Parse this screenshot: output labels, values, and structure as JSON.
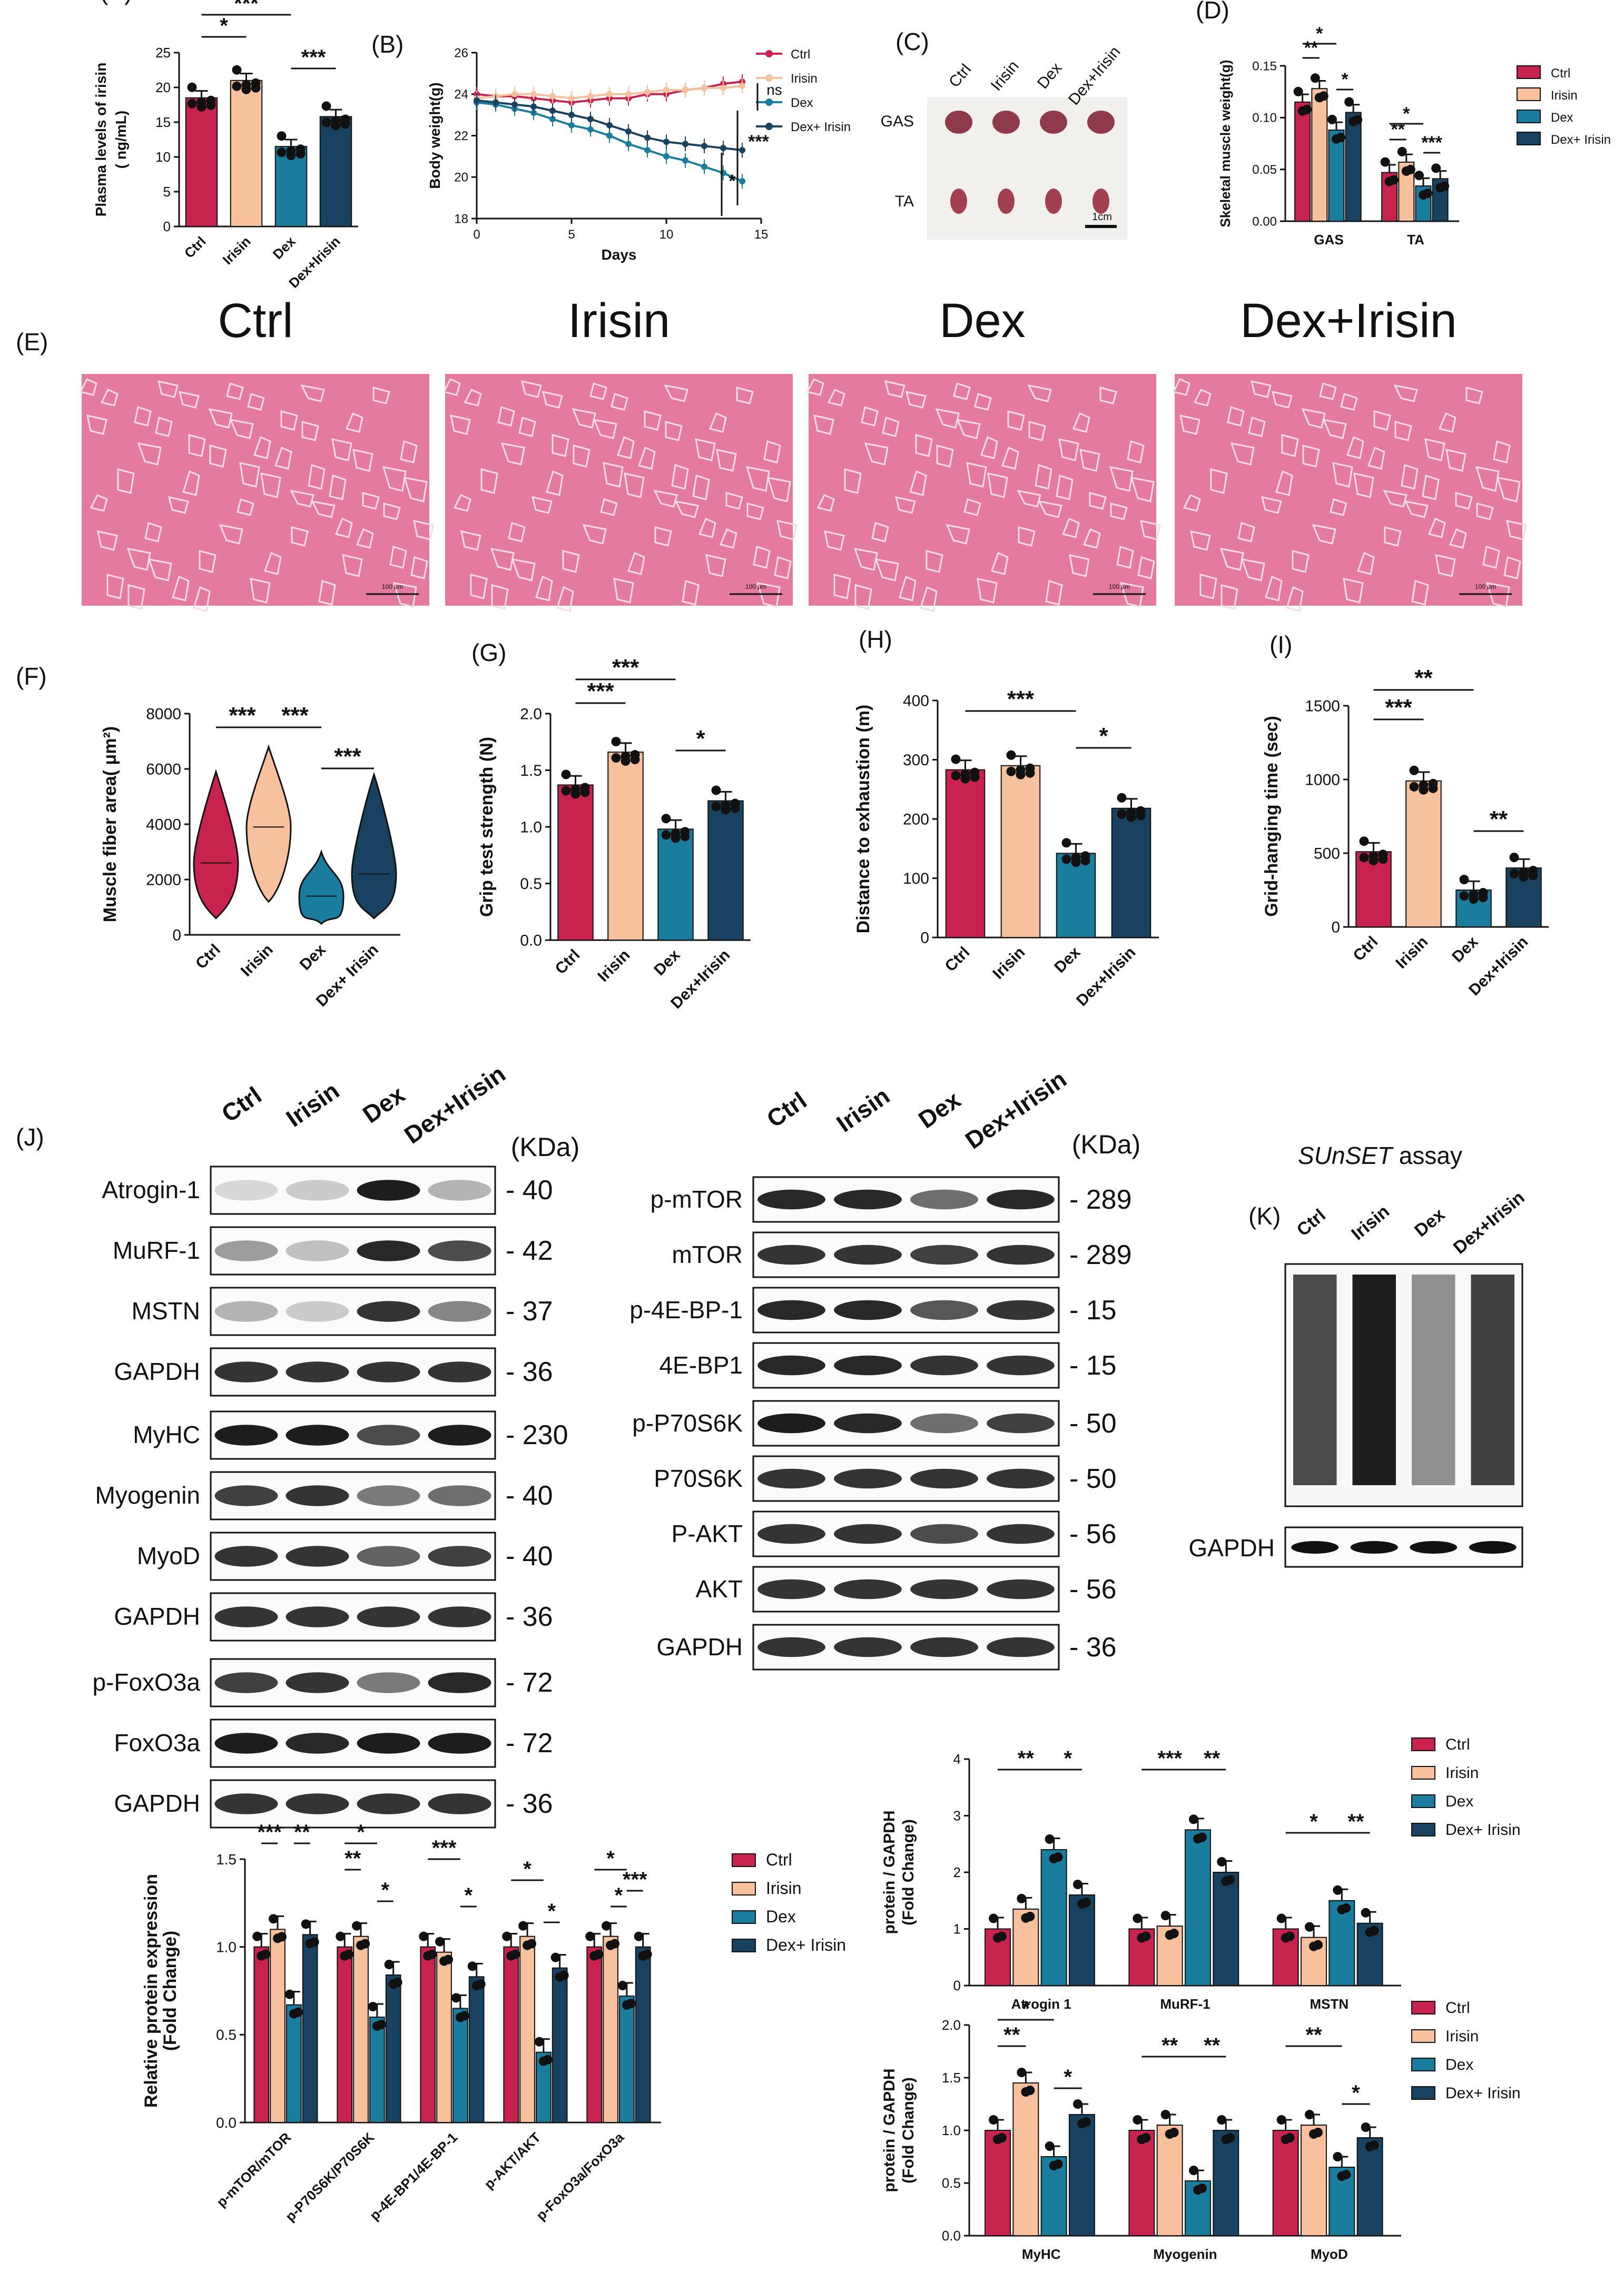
{
  "colors": {
    "Ctrl": "#c8234e",
    "Irisin": "#f7c19e",
    "Dex": "#1b7d9e",
    "Dex+Irisin": "#18425f",
    "bg_he": "#e57aa0",
    "error": "#000000"
  },
  "groups": [
    "Ctrl",
    "Irisin",
    "Dex",
    "Dex+Irisin"
  ],
  "panels": {
    "A": {
      "label": "(A)",
      "ylabel_line1": "Plasma levels of irisin",
      "ylabel_line2": "( ng/mL)",
      "ticks": [
        "0",
        "5",
        "10",
        "15",
        "20",
        "25"
      ],
      "xcats": [
        "Ctrl",
        "Irisin",
        "Dex",
        "Dex+Irisin"
      ],
      "sig": [
        "*",
        "***",
        "***"
      ]
    },
    "B": {
      "label": "(B)",
      "ylabel": "Body weight(g)",
      "xlabel": "Days",
      "yticks": [
        "18",
        "20",
        "22",
        "24",
        "26"
      ],
      "xticks": [
        "0",
        "5",
        "10",
        "15"
      ],
      "legend": [
        "Ctrl",
        "Irisin",
        "Dex",
        "Dex+ Irisin"
      ],
      "sig": [
        "ns",
        "***",
        "*"
      ]
    },
    "C": {
      "label": "(C)",
      "cols": [
        "Ctrl",
        "Irisin",
        "Dex",
        "Dex+Irisin"
      ],
      "rows": [
        "GAS",
        "TA"
      ],
      "scale": "1cm"
    },
    "D": {
      "label": "(D)",
      "ylabel": "Skeletal muscle weight(g)",
      "yticks": [
        "0.00",
        "0.05",
        "0.10",
        "0.15"
      ],
      "xcats": [
        "GAS",
        "TA"
      ],
      "legend": [
        "Ctrl",
        "Irisin",
        "Dex",
        "Dex+ Irisin"
      ],
      "sig": [
        "**",
        "*",
        "*",
        "**",
        "*",
        "***"
      ]
    },
    "E": {
      "label": "(E)",
      "titles": [
        "Ctrl",
        "Irisin",
        "Dex",
        "Dex+Irisin"
      ],
      "scalebar": "100 μm"
    },
    "F": {
      "label": "(F)",
      "ylabel": "Muscle fiber area( μm²)",
      "yticks": [
        "0",
        "2000",
        "4000",
        "6000",
        "8000"
      ],
      "xcats": [
        "Ctrl",
        "Irisin",
        "Dex",
        "Dex+ Irisin"
      ],
      "sig": [
        "***",
        "***",
        "***"
      ]
    },
    "G": {
      "label": "(G)",
      "ylabel": "Grip test strength (N)",
      "yticks": [
        "0.0",
        "0.5",
        "1.0",
        "1.5",
        "2.0"
      ],
      "xcats": [
        "Ctrl",
        "Irisin",
        "Dex",
        "Dex+Irisin"
      ],
      "sig": [
        "***",
        "***",
        "*"
      ]
    },
    "H": {
      "label": "(H)",
      "ylabel": "Distance to exhaustion (m)",
      "yticks": [
        "0",
        "100",
        "200",
        "300",
        "400"
      ],
      "xcats": [
        "Ctrl",
        "Irisin",
        "Dex",
        "Dex+Irisin"
      ],
      "sig": [
        "***",
        "*"
      ]
    },
    "I": {
      "label": "(I)",
      "ylabel": "Grid-hanging time (sec)",
      "yticks": [
        "0",
        "500",
        "1000",
        "1500"
      ],
      "xcats": [
        "Ctrl",
        "Irisin",
        "Dex",
        "Dex+Irisin"
      ],
      "sig": [
        "**",
        "***",
        "**"
      ]
    },
    "J": {
      "label": "(J)",
      "kda": "(KDa)",
      "left_blots": [
        {
          "name": "Atrogin-1",
          "kda": "- 40"
        },
        {
          "name": "MuRF-1",
          "kda": "- 42"
        },
        {
          "name": "MSTN",
          "kda": "- 37"
        },
        {
          "name": "GAPDH",
          "kda": "- 36"
        },
        {
          "name": "MyHC",
          "kda": "- 230"
        },
        {
          "name": "Myogenin",
          "kda": "- 40"
        },
        {
          "name": "MyoD",
          "kda": "- 40"
        },
        {
          "name": "GAPDH",
          "kda": "- 36"
        },
        {
          "name": "p-FoxO3a",
          "kda": "- 72"
        },
        {
          "name": "FoxO3a",
          "kda": "- 72"
        },
        {
          "name": "GAPDH",
          "kda": "- 36"
        }
      ],
      "right_blots": [
        {
          "name": "p-mTOR",
          "kda": "- 289"
        },
        {
          "name": "mTOR",
          "kda": "- 289"
        },
        {
          "name": "p-4E-BP-1",
          "kda": "- 15"
        },
        {
          "name": "4E-BP1",
          "kda": "- 15"
        },
        {
          "name": "p-P70S6K",
          "kda": "- 50"
        },
        {
          "name": "P70S6K",
          "kda": "- 50"
        },
        {
          "name": "P-AKT",
          "kda": "- 56"
        },
        {
          "name": "AKT",
          "kda": "- 56"
        },
        {
          "name": "GAPDH",
          "kda": "- 36"
        }
      ]
    },
    "K": {
      "label": "(K)",
      "title": "SUnSET",
      "title_suffix": " assay",
      "cols": [
        "Ctrl",
        "Irisin",
        "Dex",
        "Dex+Irisin"
      ],
      "gapdh": "GAPDH"
    },
    "J2": {
      "ylabel_line1": "Relative protein expression",
      "ylabel_line2": "(Fold Change)",
      "yticks": [
        "0.0",
        "0.5",
        "1.0",
        "1.5"
      ],
      "xcats": [
        "p-mTOR/mTOR",
        "p-P70S6K/P70S6K",
        "p-4E-BP1/4E-BP-1",
        "p-AKT/AKT",
        "p-FoxO3a/FoxO3a"
      ],
      "legend": [
        "Ctrl",
        "Irisin",
        "Dex",
        "Dex+ Irisin"
      ],
      "sig": [
        "***",
        "**",
        "**",
        "*",
        "*",
        "***",
        "*",
        "*",
        "*",
        "*",
        "*",
        "***"
      ]
    },
    "J3": {
      "ylabel_line1": "protein / GAPDH",
      "ylabel_line2": "(Fold Change)",
      "yticks": [
        "0",
        "1",
        "2",
        "3",
        "4"
      ],
      "xcats": [
        "Atrogin 1",
        "MuRF-1",
        "MSTN"
      ],
      "legend": [
        "Ctrl",
        "Irisin",
        "Dex",
        "Dex+ Irisin"
      ],
      "sig": [
        "**",
        "*",
        "***",
        "**",
        "*",
        "**"
      ]
    },
    "J4": {
      "ylabel_line1": "protein / GAPDH",
      "ylabel_line2": "(Fold Change)",
      "yticks": [
        "0.0",
        "0.5",
        "1.0",
        "1.5",
        "2.0"
      ],
      "xcats": [
        "MyHC",
        "Myogenin",
        "MyoD"
      ],
      "legend": [
        "Ctrl",
        "Irisin",
        "Dex",
        "Dex+ Irisin"
      ],
      "sig": [
        "*",
        "**",
        "*",
        "**",
        "**",
        "**",
        "*"
      ]
    }
  },
  "chart_data": [
    {
      "panel": "A",
      "type": "bar",
      "categories": [
        "Ctrl",
        "Irisin",
        "Dex",
        "Dex+Irisin"
      ],
      "values": [
        18.5,
        21.0,
        11.5,
        15.8
      ],
      "ylim": [
        0,
        25
      ]
    },
    {
      "panel": "B",
      "type": "line",
      "x": [
        0,
        1,
        2,
        3,
        4,
        5,
        6,
        7,
        8,
        9,
        10,
        11,
        12,
        13,
        14
      ],
      "series": [
        {
          "name": "Ctrl",
          "values": [
            24.0,
            23.9,
            23.9,
            23.8,
            23.7,
            23.6,
            23.7,
            23.8,
            23.8,
            24.0,
            24.0,
            24.2,
            24.3,
            24.5,
            24.6
          ]
        },
        {
          "name": "Irisin",
          "values": [
            23.8,
            23.9,
            24.0,
            24.0,
            23.9,
            23.8,
            23.9,
            24.0,
            24.0,
            24.1,
            24.2,
            24.2,
            24.3,
            24.3,
            24.4
          ]
        },
        {
          "name": "Dex",
          "values": [
            23.6,
            23.5,
            23.3,
            23.1,
            22.8,
            22.5,
            22.3,
            22.0,
            21.6,
            21.3,
            21.0,
            20.8,
            20.5,
            20.2,
            19.8
          ]
        },
        {
          "name": "Dex+ Irisin",
          "values": [
            23.7,
            23.6,
            23.5,
            23.4,
            23.2,
            23.0,
            22.8,
            22.5,
            22.2,
            21.9,
            21.7,
            21.6,
            21.5,
            21.4,
            21.3
          ]
        }
      ],
      "ylim": [
        18,
        26
      ],
      "xlim": [
        0,
        15
      ]
    },
    {
      "panel": "D",
      "type": "bar",
      "categories": [
        "GAS",
        "TA"
      ],
      "series": [
        {
          "name": "Ctrl",
          "values": [
            0.115,
            0.047
          ]
        },
        {
          "name": "Irisin",
          "values": [
            0.128,
            0.057
          ]
        },
        {
          "name": "Dex",
          "values": [
            0.088,
            0.034
          ]
        },
        {
          "name": "Dex+ Irisin",
          "values": [
            0.105,
            0.041
          ]
        }
      ],
      "ylim": [
        0,
        0.15
      ]
    },
    {
      "panel": "G",
      "type": "bar",
      "categories": [
        "Ctrl",
        "Irisin",
        "Dex",
        "Dex+Irisin"
      ],
      "values": [
        1.37,
        1.66,
        0.98,
        1.23
      ],
      "ylim": [
        0,
        2.0
      ]
    },
    {
      "panel": "H",
      "type": "bar",
      "categories": [
        "Ctrl",
        "Irisin",
        "Dex",
        "Dex+Irisin"
      ],
      "values": [
        283,
        290,
        142,
        218
      ],
      "ylim": [
        0,
        400
      ]
    },
    {
      "panel": "I",
      "type": "bar",
      "categories": [
        "Ctrl",
        "Irisin",
        "Dex",
        "Dex+Irisin"
      ],
      "values": [
        510,
        990,
        250,
        400
      ],
      "ylim": [
        0,
        1500
      ]
    },
    {
      "panel": "J2",
      "type": "bar",
      "categories": [
        "p-mTOR/mTOR",
        "p-P70S6K/P70S6K",
        "p-4E-BP1/4E-BP-1",
        "p-AKT/AKT",
        "p-FoxO3a/FoxO3a"
      ],
      "series": [
        {
          "name": "Ctrl",
          "values": [
            1.0,
            1.0,
            1.0,
            1.0,
            1.0
          ]
        },
        {
          "name": "Irisin",
          "values": [
            1.1,
            1.06,
            0.97,
            1.06,
            1.06
          ]
        },
        {
          "name": "Dex",
          "values": [
            0.67,
            0.6,
            0.65,
            0.4,
            0.72
          ]
        },
        {
          "name": "Dex+ Irisin",
          "values": [
            1.07,
            0.84,
            0.83,
            0.88,
            1.0
          ]
        }
      ],
      "ylim": [
        0,
        1.5
      ]
    },
    {
      "panel": "J3",
      "type": "bar",
      "categories": [
        "Atrogin 1",
        "MuRF-1",
        "MSTN"
      ],
      "series": [
        {
          "name": "Ctrl",
          "values": [
            1.0,
            1.0,
            1.0
          ]
        },
        {
          "name": "Irisin",
          "values": [
            1.35,
            1.05,
            0.85
          ]
        },
        {
          "name": "Dex",
          "values": [
            2.4,
            2.75,
            1.5
          ]
        },
        {
          "name": "Dex+ Irisin",
          "values": [
            1.6,
            2.0,
            1.1
          ]
        }
      ],
      "ylim": [
        0,
        4
      ]
    },
    {
      "panel": "J4",
      "type": "bar",
      "categories": [
        "MyHC",
        "Myogenin",
        "MyoD"
      ],
      "series": [
        {
          "name": "Ctrl",
          "values": [
            1.0,
            1.0,
            1.0
          ]
        },
        {
          "name": "Irisin",
          "values": [
            1.45,
            1.05,
            1.05
          ]
        },
        {
          "name": "Dex",
          "values": [
            0.75,
            0.52,
            0.65
          ]
        },
        {
          "name": "Dex+ Irisin",
          "values": [
            1.15,
            1.0,
            0.93
          ]
        }
      ],
      "ylim": [
        0,
        2.0
      ]
    },
    {
      "panel": "F",
      "type": "violin",
      "categories": [
        "Ctrl",
        "Irisin",
        "Dex",
        "Dex+ Irisin"
      ],
      "medians": [
        2600,
        3900,
        1400,
        2200
      ],
      "ranges": [
        [
          600,
          5900
        ],
        [
          1200,
          6800
        ],
        [
          400,
          3000
        ],
        [
          600,
          5800
        ]
      ],
      "ylim": [
        0,
        8000
      ]
    }
  ]
}
